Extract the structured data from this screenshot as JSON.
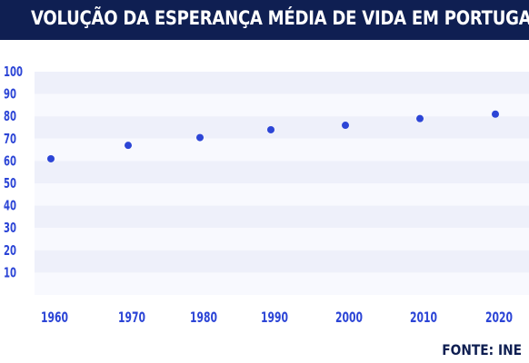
{
  "header": {
    "title": "VOLUÇÃO DA ESPERANÇA MÉDIA DE VIDA EM PORTUGAL"
  },
  "footer": {
    "source": "FONTE: INE"
  },
  "colors": {
    "title_bg": "#0f1f52",
    "point": "#2c45d6",
    "tick_text": "#2c45d6",
    "band_a": "#eef0fa",
    "band_b": "#f8f9fe"
  },
  "chart_data": {
    "type": "scatter",
    "title": "VOLUÇÃO DA ESPERANÇA MÉDIA DE VIDA EM PORTUGAL",
    "xlabel": "",
    "ylabel": "",
    "categories": [
      "1960",
      "1970",
      "1980",
      "1990",
      "2000",
      "2010",
      "2020"
    ],
    "values": [
      61,
      67,
      70.5,
      74,
      76,
      79,
      81
    ],
    "yticks": [
      10,
      20,
      30,
      40,
      50,
      60,
      70,
      80,
      90,
      100
    ],
    "ylim": [
      0,
      100
    ],
    "grid": "horizontal bands",
    "legend": "none"
  }
}
